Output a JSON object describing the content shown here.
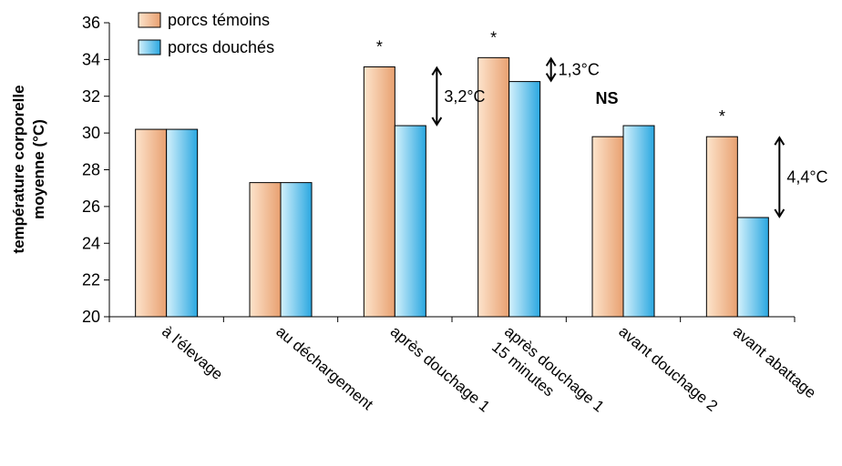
{
  "chart_data": {
    "type": "bar",
    "title": "",
    "xlabel": "",
    "ylabel_lines": [
      "température corporelle",
      "moyenne (°C)"
    ],
    "ylim": [
      20,
      36
    ],
    "yticks": [
      20,
      22,
      24,
      26,
      28,
      30,
      32,
      34,
      36
    ],
    "grid": false,
    "legend_position": "top-left",
    "categories": [
      [
        "à l'élevage"
      ],
      [
        "au déchargement"
      ],
      [
        "après douchage 1"
      ],
      [
        "15 minutes",
        "après douchage 1"
      ],
      [
        "avant douchage 2"
      ],
      [
        "avant abattage"
      ]
    ],
    "series": [
      {
        "name": "porcs témoins",
        "values": [
          30.2,
          27.3,
          33.6,
          34.1,
          29.8,
          29.8
        ],
        "color_light": "#fde4cc",
        "color_dark": "#e8a070"
      },
      {
        "name": "porcs douchés",
        "values": [
          30.2,
          27.3,
          30.4,
          32.8,
          30.4,
          25.4
        ],
        "color_light": "#d4f1fc",
        "color_dark": "#2aa7e0"
      }
    ],
    "annotations": [
      {
        "category_index": 2,
        "significance": "*",
        "difference_label": "3,2°C"
      },
      {
        "category_index": 3,
        "significance": "*",
        "difference_label": "1,3°C"
      },
      {
        "category_index": 4,
        "significance": "NS",
        "difference_label": ""
      },
      {
        "category_index": 5,
        "significance": "*",
        "difference_label": "4,4°C"
      }
    ]
  }
}
